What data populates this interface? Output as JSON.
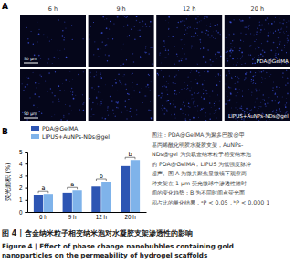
{
  "panels": {
    "a": {
      "label": "A",
      "times": [
        "6 h",
        "9 h",
        "12 h",
        "20 h"
      ],
      "rows": [
        "PDA@GelMA",
        "LIPUS+AuNPs-NDs@gel"
      ],
      "scale_bar": "50 μm"
    },
    "b": {
      "label": "B"
    }
  },
  "chart_data": {
    "type": "bar",
    "y_label": "荧光面积 (%)",
    "categories": [
      "6 h",
      "9 h",
      "12 h",
      "20 h"
    ],
    "series": [
      {
        "name": "PDA@GelMA",
        "color": "#2d55b3",
        "values": [
          1.4,
          1.6,
          2.1,
          3.8
        ]
      },
      {
        "name": "LIPUS+AuNPs-NDs@gel",
        "color": "#7fb3ea",
        "values": [
          1.5,
          1.8,
          2.5,
          4.3
        ]
      }
    ],
    "ylim": [
      0,
      5
    ],
    "yticks": [
      0,
      1,
      2,
      3,
      4,
      5
    ],
    "legend": "upper left",
    "annotations": [
      "a",
      "a",
      "b",
      "b"
    ]
  },
  "note_lines": [
    "图注：PDA@GelMA 为聚多巴胺@甲",
    "基丙烯酰化明胶水凝胶支架，AuNPs-",
    "NDs@gel 为负载金纳米粒子相变纳米泡",
    "的 PDA@GelMA，LIPUS 为低强度脉冲",
    "超声。图 A 为微共聚焦显微镜下观察两",
    "种支架在 1 μm 荧光微球中渗透性随时",
    "间的变化趋势；B 为不同时间点荧光面",
    "积占比的量化结果，ᵃP < 0.05，ᵇP < 0.000 1"
  ],
  "caption": {
    "zh": "图 4 | 含金纳米粒子相变纳米泡对水凝胶支架渗透性的影响",
    "en": [
      "Figure 4 | Effect of phase change nanobubbles containing gold",
      "nanoparticles on the permeability of hydrogel scaffolds"
    ]
  }
}
